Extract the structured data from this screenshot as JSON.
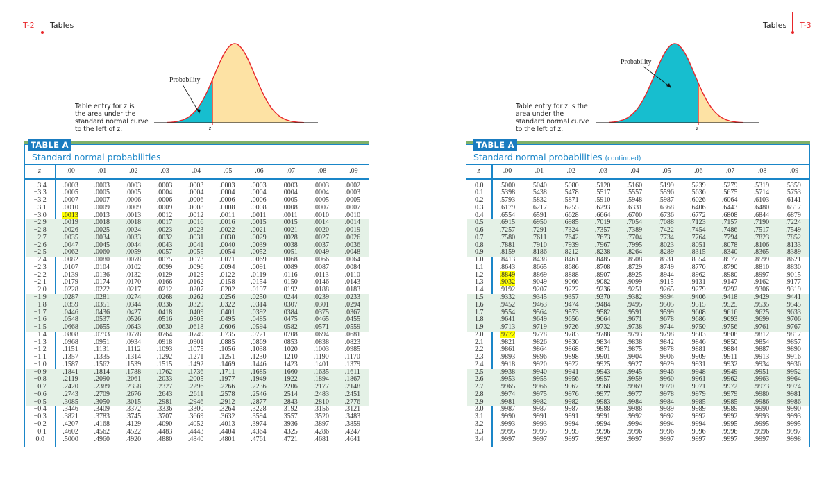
{
  "left_page": {
    "page_number": "T-2",
    "running_head": "Tables",
    "figure": {
      "caption_lines": [
        "Table entry for z is",
        "the area under the",
        "standard normal curve",
        "to the left of z."
      ],
      "probability_label": "Probability",
      "z_label": "z",
      "shaded_color": "#17becf",
      "unshaded_color": "#fde2a4",
      "curve_color": "#e8262a"
    },
    "table": {
      "tag": "TABLE A",
      "title": "Standard normal probabilities",
      "title_suffix": "",
      "columns": [
        "z",
        ".00",
        ".01",
        ".02",
        ".03",
        ".04",
        ".05",
        ".06",
        ".07",
        ".08",
        ".09"
      ],
      "highlighted": [
        {
          "row": "−3.0",
          "col": ".00"
        }
      ],
      "rows": [
        [
          "−3.4",
          ".0003",
          ".0003",
          ".0003",
          ".0003",
          ".0003",
          ".0003",
          ".0003",
          ".0003",
          ".0003",
          ".0002"
        ],
        [
          "−3.3",
          ".0005",
          ".0005",
          ".0005",
          ".0004",
          ".0004",
          ".0004",
          ".0004",
          ".0004",
          ".0004",
          ".0003"
        ],
        [
          "−3.2",
          ".0007",
          ".0007",
          ".0006",
          ".0006",
          ".0006",
          ".0006",
          ".0006",
          ".0005",
          ".0005",
          ".0005"
        ],
        [
          "−3.1",
          ".0010",
          ".0009",
          ".0009",
          ".0009",
          ".0008",
          ".0008",
          ".0008",
          ".0008",
          ".0007",
          ".0007"
        ],
        [
          "−3.0",
          ".0013",
          ".0013",
          ".0013",
          ".0012",
          ".0012",
          ".0011",
          ".0011",
          ".0011",
          ".0010",
          ".0010"
        ],
        [
          "−2.9",
          ".0019",
          ".0018",
          ".0018",
          ".0017",
          ".0016",
          ".0016",
          ".0015",
          ".0015",
          ".0014",
          ".0014"
        ],
        [
          "−2.8",
          ".0026",
          ".0025",
          ".0024",
          ".0023",
          ".0023",
          ".0022",
          ".0021",
          ".0021",
          ".0020",
          ".0019"
        ],
        [
          "−2.7",
          ".0035",
          ".0034",
          ".0033",
          ".0032",
          ".0031",
          ".0030",
          ".0029",
          ".0028",
          ".0027",
          ".0026"
        ],
        [
          "−2.6",
          ".0047",
          ".0045",
          ".0044",
          ".0043",
          ".0041",
          ".0040",
          ".0039",
          ".0038",
          ".0037",
          ".0036"
        ],
        [
          "−2.5",
          ".0062",
          ".0060",
          ".0059",
          ".0057",
          ".0055",
          ".0054",
          ".0052",
          ".0051",
          ".0049",
          ".0048"
        ],
        [
          "−2.4",
          ".0082",
          ".0080",
          ".0078",
          ".0075",
          ".0073",
          ".0071",
          ".0069",
          ".0068",
          ".0066",
          ".0064"
        ],
        [
          "−2.3",
          ".0107",
          ".0104",
          ".0102",
          ".0099",
          ".0096",
          ".0094",
          ".0091",
          ".0089",
          ".0087",
          ".0084"
        ],
        [
          "−2.2",
          ".0139",
          ".0136",
          ".0132",
          ".0129",
          ".0125",
          ".0122",
          ".0119",
          ".0116",
          ".0113",
          ".0110"
        ],
        [
          "−2.1",
          ".0179",
          ".0174",
          ".0170",
          ".0166",
          ".0162",
          ".0158",
          ".0154",
          ".0150",
          ".0146",
          ".0143"
        ],
        [
          "−2.0",
          ".0228",
          ".0222",
          ".0217",
          ".0212",
          ".0207",
          ".0202",
          ".0197",
          ".0192",
          ".0188",
          ".0183"
        ],
        [
          "−1.9",
          ".0287",
          ".0281",
          ".0274",
          ".0268",
          ".0262",
          ".0256",
          ".0250",
          ".0244",
          ".0239",
          ".0233"
        ],
        [
          "−1.8",
          ".0359",
          ".0351",
          ".0344",
          ".0336",
          ".0329",
          ".0322",
          ".0314",
          ".0307",
          ".0301",
          ".0294"
        ],
        [
          "−1.7",
          ".0446",
          ".0436",
          ".0427",
          ".0418",
          ".0409",
          ".0401",
          ".0392",
          ".0384",
          ".0375",
          ".0367"
        ],
        [
          "−1.6",
          ".0548",
          ".0537",
          ".0526",
          ".0516",
          ".0505",
          ".0495",
          ".0485",
          ".0475",
          ".0465",
          ".0455"
        ],
        [
          "−1.5",
          ".0668",
          ".0655",
          ".0643",
          ".0630",
          ".0618",
          ".0606",
          ".0594",
          ".0582",
          ".0571",
          ".0559"
        ],
        [
          "−1.4",
          ".0808",
          ".0793",
          ".0778",
          ".0764",
          ".0749",
          ".0735",
          ".0721",
          ".0708",
          ".0694",
          ".0681"
        ],
        [
          "−1.3",
          ".0968",
          ".0951",
          ".0934",
          ".0918",
          ".0901",
          ".0885",
          ".0869",
          ".0853",
          ".0838",
          ".0823"
        ],
        [
          "−1.2",
          ".1151",
          ".1131",
          ".1112",
          ".1093",
          ".1075",
          ".1056",
          ".1038",
          ".1020",
          ".1003",
          ".0985"
        ],
        [
          "−1.1",
          ".1357",
          ".1335",
          ".1314",
          ".1292",
          ".1271",
          ".1251",
          ".1230",
          ".1210",
          ".1190",
          ".1170"
        ],
        [
          "−1.0",
          ".1587",
          ".1562",
          ".1539",
          ".1515",
          ".1492",
          ".1469",
          ".1446",
          ".1423",
          ".1401",
          ".1379"
        ],
        [
          "−0.9",
          ".1841",
          ".1814",
          ".1788",
          ".1762",
          ".1736",
          ".1711",
          ".1685",
          ".1660",
          ".1635",
          ".1611"
        ],
        [
          "−0.8",
          ".2119",
          ".2090",
          ".2061",
          ".2033",
          ".2005",
          ".1977",
          ".1949",
          ".1922",
          ".1894",
          ".1867"
        ],
        [
          "−0.7",
          ".2420",
          ".2389",
          ".2358",
          ".2327",
          ".2296",
          ".2266",
          ".2236",
          ".2206",
          ".2177",
          ".2148"
        ],
        [
          "−0.6",
          ".2743",
          ".2709",
          ".2676",
          ".2643",
          ".2611",
          ".2578",
          ".2546",
          ".2514",
          ".2483",
          ".2451"
        ],
        [
          "−0.5",
          ".3085",
          ".3050",
          ".3015",
          ".2981",
          ".2946",
          ".2912",
          ".2877",
          ".2843",
          ".2810",
          ".2776"
        ],
        [
          "−0.4",
          ".3446",
          ".3409",
          ".3372",
          ".3336",
          ".3300",
          ".3264",
          ".3228",
          ".3192",
          ".3156",
          ".3121"
        ],
        [
          "−0.3",
          ".3821",
          ".3783",
          ".3745",
          ".3707",
          ".3669",
          ".3632",
          ".3594",
          ".3557",
          ".3520",
          ".3483"
        ],
        [
          "−0.2",
          ".4207",
          ".4168",
          ".4129",
          ".4090",
          ".4052",
          ".4013",
          ".3974",
          ".3936",
          ".3897",
          ".3859"
        ],
        [
          "−0.1",
          ".4602",
          ".4562",
          ".4522",
          ".4483",
          ".4443",
          ".4404",
          ".4364",
          ".4325",
          ".4286",
          ".4247"
        ],
        [
          "0.0",
          ".5000",
          ".4960",
          ".4920",
          ".4880",
          ".4840",
          ".4801",
          ".4761",
          ".4721",
          ".4681",
          ".4641"
        ]
      ]
    }
  },
  "right_page": {
    "page_number": "T-3",
    "running_head": "Tables",
    "figure": {
      "caption_lines": [
        "Table entry for z is the",
        "area under the",
        "standard normal curve",
        "to the left of z."
      ],
      "probability_label": "Probability",
      "z_label": "z",
      "shaded_color": "#17becf",
      "unshaded_color": "#fde2a4",
      "curve_color": "#e8262a"
    },
    "table": {
      "tag": "TABLE A",
      "title": "Standard normal probabilities",
      "title_suffix": "(continued)",
      "columns": [
        "z",
        ".00",
        ".01",
        ".02",
        ".03",
        ".04",
        ".05",
        ".06",
        ".07",
        ".08",
        ".09"
      ],
      "highlighted": [
        {
          "row": "1.2",
          "col": ".00"
        },
        {
          "row": "1.3",
          "col": ".00"
        },
        {
          "row": "2.0",
          "col": ".00"
        }
      ],
      "rows": [
        [
          "0.0",
          ".5000",
          ".5040",
          ".5080",
          ".5120",
          ".5160",
          ".5199",
          ".5239",
          ".5279",
          ".5319",
          ".5359"
        ],
        [
          "0.1",
          ".5398",
          ".5438",
          ".5478",
          ".5517",
          ".5557",
          ".5596",
          ".5636",
          ".5675",
          ".5714",
          ".5753"
        ],
        [
          "0.2",
          ".5793",
          ".5832",
          ".5871",
          ".5910",
          ".5948",
          ".5987",
          ".6026",
          ".6064",
          ".6103",
          ".6141"
        ],
        [
          "0.3",
          ".6179",
          ".6217",
          ".6255",
          ".6293",
          ".6331",
          ".6368",
          ".6406",
          ".6443",
          ".6480",
          ".6517"
        ],
        [
          "0.4",
          ".6554",
          ".6591",
          ".6628",
          ".6664",
          ".6700",
          ".6736",
          ".6772",
          ".6808",
          ".6844",
          ".6879"
        ],
        [
          "0.5",
          ".6915",
          ".6950",
          ".6985",
          ".7019",
          ".7054",
          ".7088",
          ".7123",
          ".7157",
          ".7190",
          ".7224"
        ],
        [
          "0.6",
          ".7257",
          ".7291",
          ".7324",
          ".7357",
          ".7389",
          ".7422",
          ".7454",
          ".7486",
          ".7517",
          ".7549"
        ],
        [
          "0.7",
          ".7580",
          ".7611",
          ".7642",
          ".7673",
          ".7704",
          ".7734",
          ".7764",
          ".7794",
          ".7823",
          ".7852"
        ],
        [
          "0.8",
          ".7881",
          ".7910",
          ".7939",
          ".7967",
          ".7995",
          ".8023",
          ".8051",
          ".8078",
          ".8106",
          ".8133"
        ],
        [
          "0.9",
          ".8159",
          ".8186",
          ".8212",
          ".8238",
          ".8264",
          ".8289",
          ".8315",
          ".8340",
          ".8365",
          ".8389"
        ],
        [
          "1.0",
          ".8413",
          ".8438",
          ".8461",
          ".8485",
          ".8508",
          ".8531",
          ".8554",
          ".8577",
          ".8599",
          ".8621"
        ],
        [
          "1.1",
          ".8643",
          ".8665",
          ".8686",
          ".8708",
          ".8729",
          ".8749",
          ".8770",
          ".8790",
          ".8810",
          ".8830"
        ],
        [
          "1.2",
          ".8849",
          ".8869",
          ".8888",
          ".8907",
          ".8925",
          ".8944",
          ".8962",
          ".8980",
          ".8997",
          ".9015"
        ],
        [
          "1.3",
          ".9032",
          ".9049",
          ".9066",
          ".9082",
          ".9099",
          ".9115",
          ".9131",
          ".9147",
          ".9162",
          ".9177"
        ],
        [
          "1.4",
          ".9192",
          ".9207",
          ".9222",
          ".9236",
          ".9251",
          ".9265",
          ".9279",
          ".9292",
          ".9306",
          ".9319"
        ],
        [
          "1.5",
          ".9332",
          ".9345",
          ".9357",
          ".9370",
          ".9382",
          ".9394",
          ".9406",
          ".9418",
          ".9429",
          ".9441"
        ],
        [
          "1.6",
          ".9452",
          ".9463",
          ".9474",
          ".9484",
          ".9495",
          ".9505",
          ".9515",
          ".9525",
          ".9535",
          ".9545"
        ],
        [
          "1.7",
          ".9554",
          ".9564",
          ".9573",
          ".9582",
          ".9591",
          ".9599",
          ".9608",
          ".9616",
          ".9625",
          ".9633"
        ],
        [
          "1.8",
          ".9641",
          ".9649",
          ".9656",
          ".9664",
          ".9671",
          ".9678",
          ".9686",
          ".9693",
          ".9699",
          ".9706"
        ],
        [
          "1.9",
          ".9713",
          ".9719",
          ".9726",
          ".9732",
          ".9738",
          ".9744",
          ".9750",
          ".9756",
          ".9761",
          ".9767"
        ],
        [
          "2.0",
          ".9772",
          ".9778",
          ".9783",
          ".9788",
          ".9793",
          ".9798",
          ".9803",
          ".9808",
          ".9812",
          ".9817"
        ],
        [
          "2.1",
          ".9821",
          ".9826",
          ".9830",
          ".9834",
          ".9838",
          ".9842",
          ".9846",
          ".9850",
          ".9854",
          ".9857"
        ],
        [
          "2.2",
          ".9861",
          ".9864",
          ".9868",
          ".9871",
          ".9875",
          ".9878",
          ".9881",
          ".9884",
          ".9887",
          ".9890"
        ],
        [
          "2.3",
          ".9893",
          ".9896",
          ".9898",
          ".9901",
          ".9904",
          ".9906",
          ".9909",
          ".9911",
          ".9913",
          ".9916"
        ],
        [
          "2.4",
          ".9918",
          ".9920",
          ".9922",
          ".9925",
          ".9927",
          ".9929",
          ".9931",
          ".9932",
          ".9934",
          ".9936"
        ],
        [
          "2.5",
          ".9938",
          ".9940",
          ".9941",
          ".9943",
          ".9945",
          ".9946",
          ".9948",
          ".9949",
          ".9951",
          ".9952"
        ],
        [
          "2.6",
          ".9953",
          ".9955",
          ".9956",
          ".9957",
          ".9959",
          ".9960",
          ".9961",
          ".9962",
          ".9963",
          ".9964"
        ],
        [
          "2.7",
          ".9965",
          ".9966",
          ".9967",
          ".9968",
          ".9969",
          ".9970",
          ".9971",
          ".9972",
          ".9973",
          ".9974"
        ],
        [
          "2.8",
          ".9974",
          ".9975",
          ".9976",
          ".9977",
          ".9977",
          ".9978",
          ".9979",
          ".9979",
          ".9980",
          ".9981"
        ],
        [
          "2.9",
          ".9981",
          ".9982",
          ".9982",
          ".9983",
          ".9984",
          ".9984",
          ".9985",
          ".9985",
          ".9986",
          ".9986"
        ],
        [
          "3.0",
          ".9987",
          ".9987",
          ".9987",
          ".9988",
          ".9988",
          ".9989",
          ".9989",
          ".9989",
          ".9990",
          ".9990"
        ],
        [
          "3.1",
          ".9990",
          ".9991",
          ".9991",
          ".9991",
          ".9992",
          ".9992",
          ".9992",
          ".9992",
          ".9993",
          ".9993"
        ],
        [
          "3.2",
          ".9993",
          ".9993",
          ".9994",
          ".9994",
          ".9994",
          ".9994",
          ".9994",
          ".9995",
          ".9995",
          ".9995"
        ],
        [
          "3.3",
          ".9995",
          ".9995",
          ".9995",
          ".9996",
          ".9996",
          ".9996",
          ".9996",
          ".9996",
          ".9996",
          ".9997"
        ],
        [
          "3.4",
          ".9997",
          ".9997",
          ".9997",
          ".9997",
          ".9997",
          ".9997",
          ".9997",
          ".9997",
          ".9997",
          ".9998"
        ]
      ]
    }
  }
}
